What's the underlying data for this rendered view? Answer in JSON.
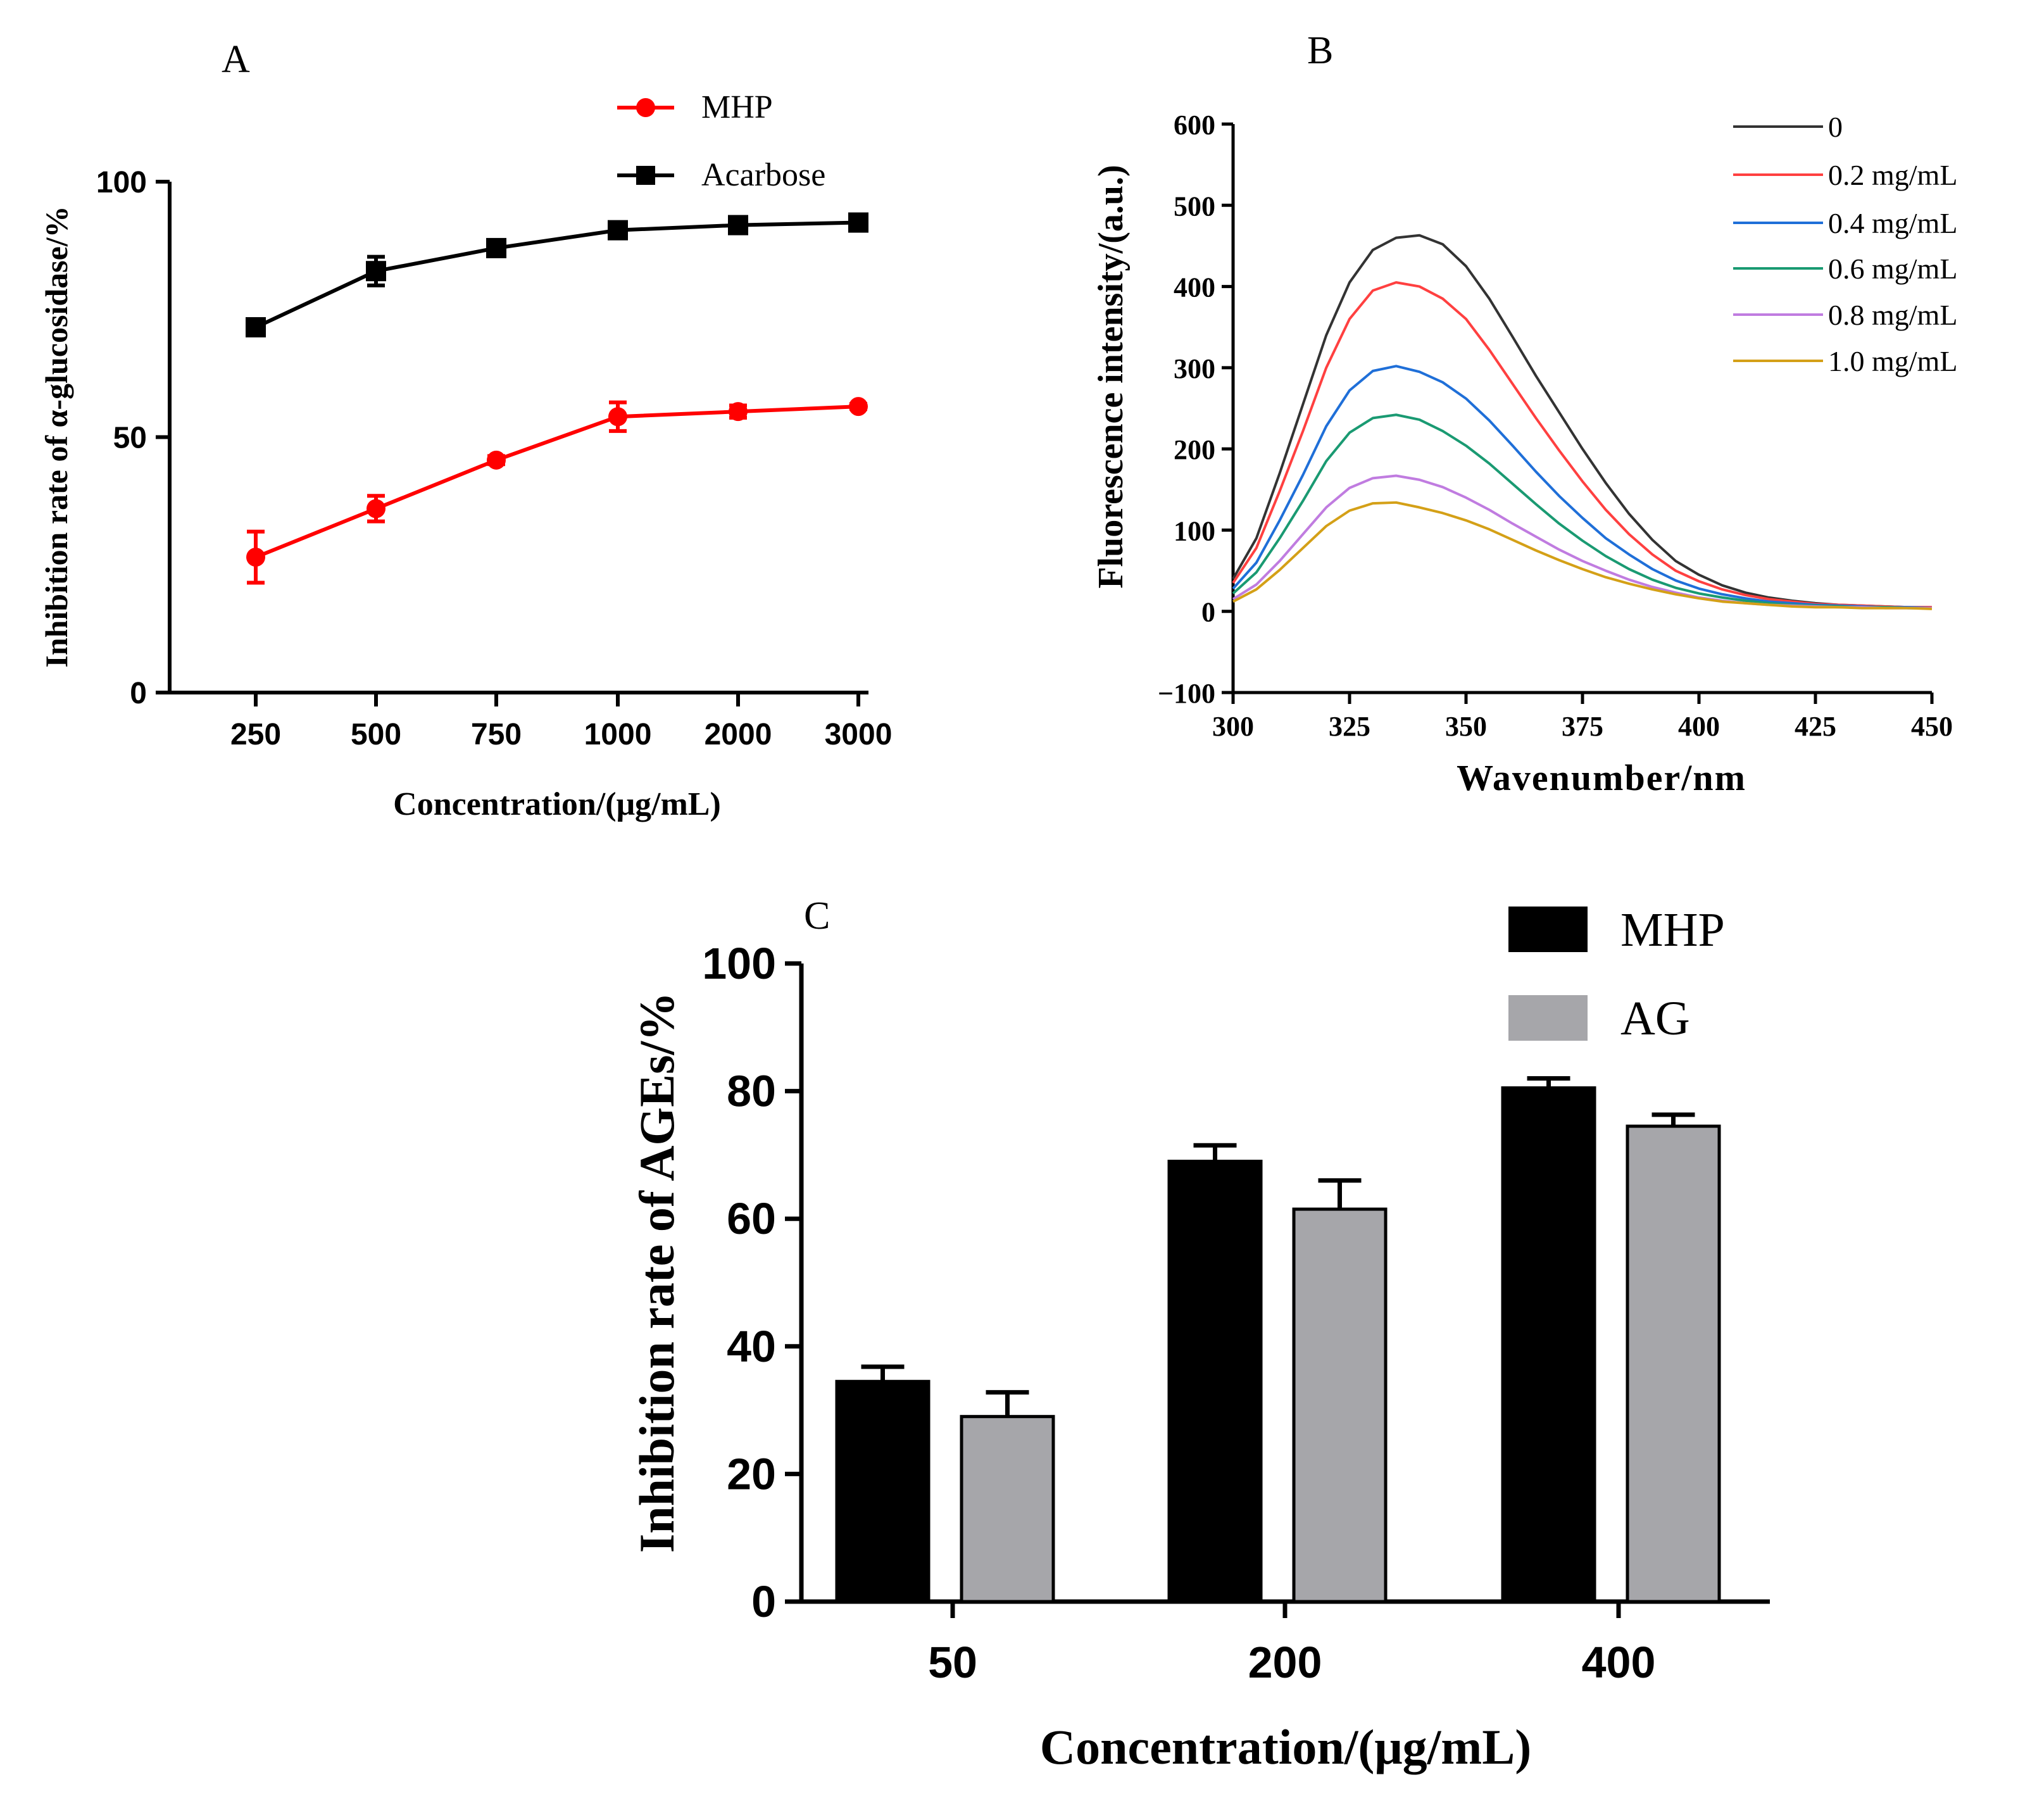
{
  "chart_data": [
    {
      "panel": "A",
      "type": "line",
      "panel_label": "A",
      "xlabel": "Concentration/(μg/mL)",
      "ylabel": "Inhibition rate of  α-glucosidase/%",
      "categories": [
        "250",
        "500",
        "750",
        "1000",
        "2000",
        "3000"
      ],
      "ylim": [
        0,
        100
      ],
      "yticks": [
        "0",
        "50",
        "100"
      ],
      "series": [
        {
          "name": "MHP",
          "color": "#ff0000",
          "marker": "circle",
          "values": [
            26.5,
            36,
            45.5,
            54,
            55,
            56
          ],
          "errors": [
            5,
            2.5,
            0.8,
            2.8,
            1.2,
            0.5
          ]
        },
        {
          "name": "Acarbose",
          "color": "#000000",
          "marker": "square",
          "values": [
            71.5,
            82.5,
            87,
            90.5,
            91.5,
            92
          ],
          "errors": [
            1,
            2.8,
            0.8,
            0.8,
            0.5,
            0.5
          ]
        }
      ]
    },
    {
      "panel": "B",
      "type": "line",
      "panel_label": "B",
      "xlabel": "Wavenumber/nm",
      "ylabel": "Fluorescence intensity/(a.u.)",
      "xlim": [
        300,
        450
      ],
      "ylim": [
        -100,
        600
      ],
      "xticks": [
        "300",
        "325",
        "350",
        "375",
        "400",
        "425",
        "450"
      ],
      "yticks": [
        "−100",
        "0",
        "100",
        "200",
        "300",
        "400",
        "500",
        "600"
      ],
      "x": [
        300,
        305,
        310,
        315,
        320,
        325,
        330,
        335,
        340,
        345,
        350,
        355,
        360,
        365,
        370,
        375,
        380,
        385,
        390,
        395,
        400,
        405,
        410,
        415,
        420,
        425,
        430,
        435,
        440,
        445,
        450
      ],
      "series": [
        {
          "name": "0",
          "color": "#333333",
          "values": [
            40,
            90,
            170,
            255,
            340,
            405,
            445,
            460,
            463,
            452,
            425,
            385,
            338,
            290,
            245,
            200,
            158,
            120,
            88,
            62,
            45,
            32,
            23,
            17,
            13,
            10,
            8,
            7,
            6,
            5,
            5
          ]
        },
        {
          "name": "0.2 mg/mL",
          "color": "#ff4040",
          "values": [
            35,
            78,
            148,
            222,
            300,
            360,
            395,
            405,
            400,
            385,
            360,
            322,
            280,
            238,
            198,
            160,
            125,
            95,
            70,
            50,
            37,
            27,
            20,
            15,
            12,
            9,
            8,
            7,
            6,
            5,
            5
          ]
        },
        {
          "name": "0.4 mg/mL",
          "color": "#1f6fd8",
          "values": [
            28,
            60,
            112,
            168,
            228,
            272,
            296,
            302,
            295,
            282,
            262,
            235,
            204,
            172,
            142,
            115,
            90,
            70,
            52,
            38,
            28,
            21,
            16,
            12,
            10,
            8,
            7,
            6,
            5,
            5,
            4
          ]
        },
        {
          "name": "0.6 mg/mL",
          "color": "#1a9a72",
          "values": [
            22,
            48,
            90,
            136,
            185,
            220,
            238,
            242,
            236,
            222,
            204,
            182,
            157,
            132,
            108,
            87,
            68,
            52,
            39,
            29,
            22,
            17,
            13,
            10,
            8,
            7,
            6,
            5,
            5,
            4,
            4
          ]
        },
        {
          "name": "0.8 mg/mL",
          "color": "#c07ce0",
          "values": [
            15,
            33,
            62,
            95,
            128,
            152,
            164,
            167,
            162,
            153,
            140,
            125,
            108,
            92,
            76,
            62,
            50,
            39,
            30,
            23,
            17,
            13,
            10,
            8,
            7,
            6,
            5,
            5,
            4,
            4,
            4
          ]
        },
        {
          "name": "1.0 mg/mL",
          "color": "#d4a017",
          "values": [
            12,
            27,
            51,
            78,
            105,
            124,
            133,
            134,
            128,
            121,
            112,
            101,
            88,
            75,
            63,
            52,
            42,
            34,
            27,
            21,
            16,
            12,
            10,
            8,
            6,
            5,
            5,
            4,
            4,
            4,
            3
          ]
        }
      ]
    },
    {
      "panel": "C",
      "type": "bar",
      "panel_label": "C",
      "xlabel": "Concentration/(μg/mL)",
      "ylabel": "Inhibition rate of AGEs/%",
      "categories": [
        "50",
        "200",
        "400"
      ],
      "ylim": [
        0,
        100
      ],
      "yticks": [
        "0",
        "20",
        "40",
        "60",
        "80",
        "100"
      ],
      "series": [
        {
          "name": "MHP",
          "color": "#000000",
          "values": [
            34.5,
            69,
            80.5
          ],
          "errors": [
            2.3,
            2.5,
            1.5
          ]
        },
        {
          "name": "AG",
          "color": "#a6a6aa",
          "values": [
            29,
            61.5,
            74.5
          ],
          "errors": [
            3.8,
            4.5,
            1.8
          ]
        }
      ]
    }
  ]
}
